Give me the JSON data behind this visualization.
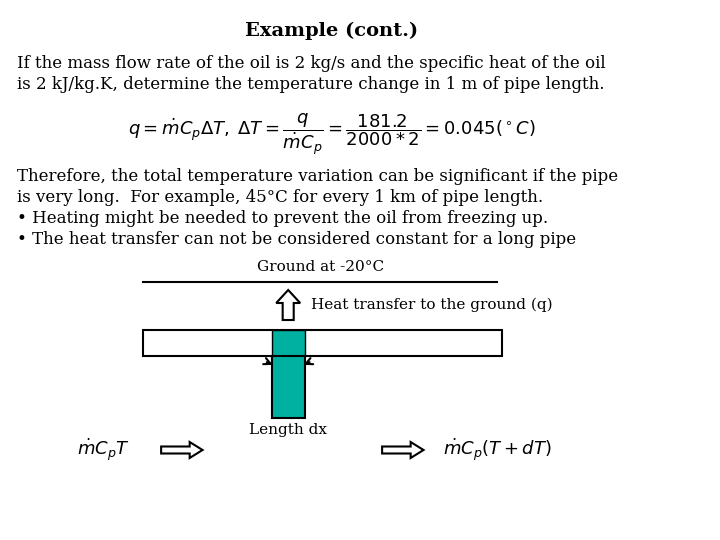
{
  "title": "Example (cont.)",
  "background_color": "#ffffff",
  "text_color": "#000000",
  "teal_color": "#00b0a0",
  "line1": "If the mass flow rate of the oil is 2 kg/s and the specific heat of the oil",
  "line2": "is 2 kJ/kg.K, determine the temperature change in 1 m of pipe length.",
  "formula": "$q = \\dot{m}C_p\\Delta T, \\; \\Delta T = \\dfrac{q}{\\dot{m}C_p} = \\dfrac{181.2}{2000 * 2} = 0.045(^\\circ C)$",
  "text_block": "Therefore, the total temperature variation can be significant if the pipe\nis very long.  For example, 45°C for every 1 km of pipe length.\n• Heating might be needed to prevent the oil from freezing up.\n• The heat transfer can not be considered constant for a long pipe",
  "ground_label": "Ground at -20°C",
  "heat_label": "Heat transfer to the ground (q)",
  "length_label": "Length dx",
  "left_formula": "$\\dot{m}C_pT$",
  "right_formula": "$\\dot{m}C_p(T + dT)$"
}
